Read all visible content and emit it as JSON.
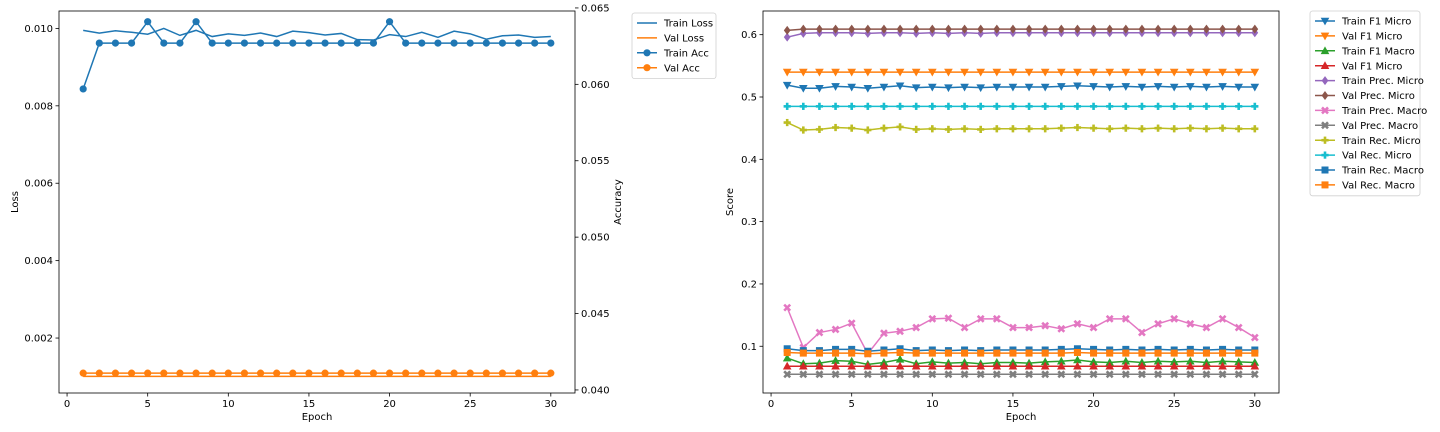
{
  "chart_data": [
    {
      "type": "line",
      "xlabel": "Epoch",
      "ylabel": "Loss",
      "ylabel_right": "Accuracy",
      "xlim": [
        -0.5,
        31.5
      ],
      "ylim": [
        0.00058,
        0.01045
      ],
      "ylim_right": [
        0.0398,
        0.0648
      ],
      "xticks": [
        0,
        5,
        10,
        15,
        20,
        25,
        30
      ],
      "yticks": [
        0.002,
        0.004,
        0.006,
        0.008,
        0.01
      ],
      "yticks_right": [
        0.04,
        0.045,
        0.05,
        0.055,
        0.06,
        0.065
      ],
      "grid": false,
      "legend_position": "outside right, top",
      "x": [
        1,
        2,
        3,
        4,
        5,
        6,
        7,
        8,
        9,
        10,
        11,
        12,
        13,
        14,
        15,
        16,
        17,
        18,
        19,
        20,
        21,
        22,
        23,
        24,
        25,
        26,
        27,
        28,
        29,
        30
      ],
      "series": [
        {
          "name": "Train Loss",
          "axis": "left",
          "color": "#1f77b4",
          "marker": "none",
          "values": [
            0.00995,
            0.00988,
            0.00994,
            0.0099,
            0.00985,
            0.01,
            0.00982,
            0.00995,
            0.00979,
            0.00986,
            0.00982,
            0.00988,
            0.00979,
            0.00993,
            0.00989,
            0.00983,
            0.00987,
            0.00971,
            0.0097,
            0.00984,
            0.00979,
            0.0099,
            0.00977,
            0.00993,
            0.00986,
            0.00972,
            0.00981,
            0.00983,
            0.00977,
            0.00979
          ]
        },
        {
          "name": "Val Loss",
          "axis": "left",
          "color": "#ff7f0e",
          "marker": "none",
          "values": [
            0.00101,
            0.00101,
            0.00101,
            0.00101,
            0.00101,
            0.00101,
            0.00101,
            0.00101,
            0.00101,
            0.00101,
            0.00101,
            0.00101,
            0.00101,
            0.00101,
            0.00101,
            0.00101,
            0.00101,
            0.00101,
            0.00101,
            0.00101,
            0.00101,
            0.00101,
            0.00101,
            0.00101,
            0.00101,
            0.00101,
            0.00101,
            0.00101,
            0.00101,
            0.00101
          ]
        },
        {
          "name": "Train Acc",
          "axis": "right",
          "color": "#1f77b4",
          "marker": "circle",
          "values": [
            0.0597,
            0.0627,
            0.0627,
            0.0627,
            0.0641,
            0.0627,
            0.0627,
            0.0641,
            0.0627,
            0.0627,
            0.0627,
            0.0627,
            0.0627,
            0.0627,
            0.0627,
            0.0627,
            0.0627,
            0.0627,
            0.0627,
            0.0641,
            0.0627,
            0.0627,
            0.0627,
            0.0627,
            0.0627,
            0.0627,
            0.0627,
            0.0627,
            0.0627,
            0.0627
          ]
        },
        {
          "name": "Val Acc",
          "axis": "right",
          "color": "#ff7f0e",
          "marker": "circle",
          "values": [
            0.0411,
            0.0411,
            0.0411,
            0.0411,
            0.0411,
            0.0411,
            0.0411,
            0.0411,
            0.0411,
            0.0411,
            0.0411,
            0.0411,
            0.0411,
            0.0411,
            0.0411,
            0.0411,
            0.0411,
            0.0411,
            0.0411,
            0.0411,
            0.0411,
            0.0411,
            0.0411,
            0.0411,
            0.0411,
            0.0411,
            0.0411,
            0.0411,
            0.0411,
            0.0411
          ]
        }
      ]
    },
    {
      "type": "line",
      "xlabel": "Epoch",
      "ylabel": "Score",
      "xlim": [
        -0.5,
        31.5
      ],
      "ylim": [
        0.025,
        0.638
      ],
      "xticks": [
        0,
        5,
        10,
        15,
        20,
        25,
        30
      ],
      "yticks": [
        0.1,
        0.2,
        0.3,
        0.4,
        0.5,
        0.6
      ],
      "grid": false,
      "legend_position": "outside right, top",
      "x": [
        1,
        2,
        3,
        4,
        5,
        6,
        7,
        8,
        9,
        10,
        11,
        12,
        13,
        14,
        15,
        16,
        17,
        18,
        19,
        20,
        21,
        22,
        23,
        24,
        25,
        26,
        27,
        28,
        29,
        30
      ],
      "series": [
        {
          "name": "Train F1 Micro",
          "color": "#1f77b4",
          "marker": "triangle_down",
          "values": [
            0.519,
            0.514,
            0.514,
            0.517,
            0.516,
            0.514,
            0.516,
            0.518,
            0.515,
            0.516,
            0.515,
            0.516,
            0.515,
            0.516,
            0.516,
            0.516,
            0.516,
            0.517,
            0.518,
            0.517,
            0.516,
            0.517,
            0.516,
            0.517,
            0.516,
            0.517,
            0.516,
            0.517,
            0.516,
            0.516
          ]
        },
        {
          "name": "Val F1 Micro",
          "color": "#ff7f0e",
          "marker": "triangle_down",
          "values": [
            0.54,
            0.54,
            0.54,
            0.54,
            0.54,
            0.54,
            0.54,
            0.54,
            0.54,
            0.54,
            0.54,
            0.54,
            0.54,
            0.54,
            0.54,
            0.54,
            0.54,
            0.54,
            0.54,
            0.54,
            0.54,
            0.54,
            0.54,
            0.54,
            0.54,
            0.54,
            0.54,
            0.54,
            0.54,
            0.54
          ]
        },
        {
          "name": "Train F1 Macro",
          "color": "#2ca02c",
          "marker": "triangle_up",
          "values": [
            0.081,
            0.072,
            0.073,
            0.077,
            0.076,
            0.071,
            0.074,
            0.079,
            0.072,
            0.075,
            0.073,
            0.074,
            0.072,
            0.074,
            0.074,
            0.073,
            0.075,
            0.076,
            0.078,
            0.075,
            0.074,
            0.076,
            0.074,
            0.076,
            0.075,
            0.076,
            0.074,
            0.076,
            0.075,
            0.074
          ]
        },
        {
          "name": "Val F1 Micro",
          "color": "#d62728",
          "marker": "triangle_up",
          "values": [
            0.068,
            0.068,
            0.068,
            0.068,
            0.068,
            0.068,
            0.068,
            0.068,
            0.068,
            0.068,
            0.068,
            0.068,
            0.068,
            0.068,
            0.068,
            0.068,
            0.068,
            0.068,
            0.068,
            0.068,
            0.068,
            0.068,
            0.068,
            0.068,
            0.068,
            0.068,
            0.068,
            0.068,
            0.068,
            0.068
          ]
        },
        {
          "name": "Train Prec. Micro",
          "color": "#9467bd",
          "marker": "diamond",
          "values": [
            0.596,
            0.602,
            0.603,
            0.603,
            0.603,
            0.602,
            0.603,
            0.603,
            0.602,
            0.603,
            0.602,
            0.603,
            0.602,
            0.603,
            0.603,
            0.603,
            0.603,
            0.603,
            0.603,
            0.603,
            0.603,
            0.603,
            0.603,
            0.603,
            0.603,
            0.603,
            0.603,
            0.603,
            0.603,
            0.603
          ]
        },
        {
          "name": "Val Prec. Micro",
          "color": "#8c564b",
          "marker": "diamond",
          "values": [
            0.607,
            0.609,
            0.609,
            0.609,
            0.609,
            0.609,
            0.609,
            0.609,
            0.609,
            0.609,
            0.609,
            0.609,
            0.609,
            0.609,
            0.609,
            0.609,
            0.609,
            0.609,
            0.609,
            0.609,
            0.609,
            0.609,
            0.609,
            0.609,
            0.609,
            0.609,
            0.609,
            0.609,
            0.609,
            0.609
          ]
        },
        {
          "name": "Train Prec. Macro",
          "color": "#e377c2",
          "marker": "x_filled",
          "values": [
            0.162,
            0.098,
            0.122,
            0.127,
            0.137,
            0.088,
            0.121,
            0.124,
            0.13,
            0.144,
            0.145,
            0.13,
            0.144,
            0.144,
            0.13,
            0.13,
            0.133,
            0.128,
            0.136,
            0.13,
            0.144,
            0.144,
            0.122,
            0.136,
            0.144,
            0.136,
            0.13,
            0.144,
            0.13,
            0.114
          ]
        },
        {
          "name": "Val Prec. Macro",
          "color": "#7f7f7f",
          "marker": "x_filled",
          "values": [
            0.055,
            0.055,
            0.055,
            0.055,
            0.055,
            0.055,
            0.055,
            0.055,
            0.055,
            0.055,
            0.055,
            0.055,
            0.055,
            0.055,
            0.055,
            0.055,
            0.055,
            0.055,
            0.055,
            0.055,
            0.055,
            0.055,
            0.055,
            0.055,
            0.055,
            0.055,
            0.055,
            0.055,
            0.055,
            0.055
          ]
        },
        {
          "name": "Train Rec. Micro",
          "color": "#bcbd22",
          "marker": "plus_filled",
          "values": [
            0.459,
            0.447,
            0.448,
            0.451,
            0.45,
            0.447,
            0.45,
            0.452,
            0.448,
            0.449,
            0.448,
            0.449,
            0.448,
            0.449,
            0.449,
            0.449,
            0.449,
            0.45,
            0.451,
            0.45,
            0.449,
            0.45,
            0.449,
            0.45,
            0.449,
            0.45,
            0.449,
            0.45,
            0.449,
            0.449
          ]
        },
        {
          "name": "Val Rec. Micro",
          "color": "#17becf",
          "marker": "plus_filled",
          "values": [
            0.485,
            0.485,
            0.485,
            0.485,
            0.485,
            0.485,
            0.485,
            0.485,
            0.485,
            0.485,
            0.485,
            0.485,
            0.485,
            0.485,
            0.485,
            0.485,
            0.485,
            0.485,
            0.485,
            0.485,
            0.485,
            0.485,
            0.485,
            0.485,
            0.485,
            0.485,
            0.485,
            0.485,
            0.485,
            0.485
          ]
        },
        {
          "name": "Train Rec. Macro",
          "color": "#1f77b4",
          "marker": "square",
          "values": [
            0.096,
            0.093,
            0.093,
            0.095,
            0.095,
            0.092,
            0.094,
            0.096,
            0.093,
            0.094,
            0.093,
            0.094,
            0.093,
            0.094,
            0.094,
            0.094,
            0.094,
            0.095,
            0.096,
            0.095,
            0.094,
            0.095,
            0.094,
            0.095,
            0.094,
            0.095,
            0.094,
            0.095,
            0.094,
            0.094
          ]
        },
        {
          "name": "Val Rec. Macro",
          "color": "#ff7f0e",
          "marker": "square",
          "values": [
            0.09,
            0.089,
            0.089,
            0.089,
            0.089,
            0.088,
            0.089,
            0.09,
            0.089,
            0.089,
            0.089,
            0.089,
            0.089,
            0.089,
            0.089,
            0.089,
            0.089,
            0.089,
            0.09,
            0.089,
            0.089,
            0.089,
            0.089,
            0.089,
            0.089,
            0.089,
            0.089,
            0.089,
            0.089,
            0.089
          ]
        }
      ]
    }
  ]
}
